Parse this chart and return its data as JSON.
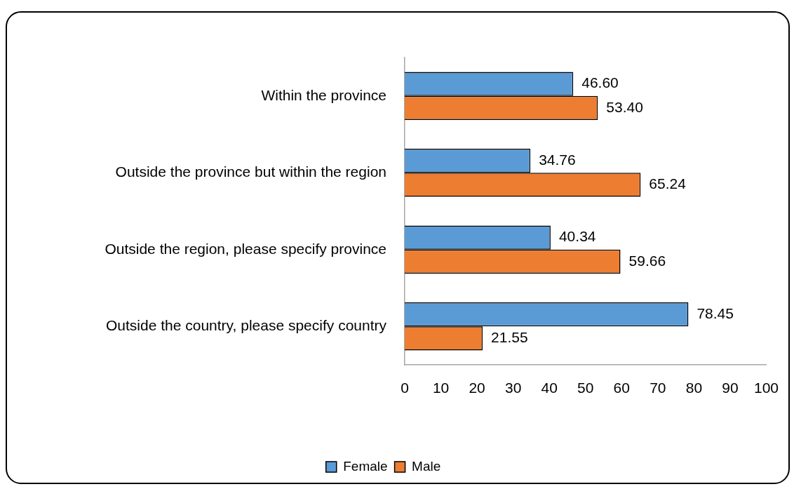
{
  "chart_data": {
    "type": "bar",
    "orientation": "horizontal",
    "categories": [
      "Within the province",
      "Outside the province but within the region",
      "Outside the region, please specify province",
      "Outside the country, please specify country"
    ],
    "series": [
      {
        "name": "Female",
        "color": "#5b9bd5",
        "values": [
          46.6,
          34.76,
          40.34,
          78.45
        ],
        "value_labels": [
          "46.60",
          "34.76",
          "40.34",
          "78.45"
        ]
      },
      {
        "name": "Male",
        "color": "#ed7d31",
        "values": [
          53.4,
          65.24,
          59.66,
          21.55
        ],
        "value_labels": [
          "53.40",
          "65.24",
          "59.66",
          "21.55"
        ]
      }
    ],
    "xlim": [
      0,
      100
    ],
    "xticks": [
      0,
      10,
      20,
      30,
      40,
      50,
      60,
      70,
      80,
      90,
      100
    ],
    "grid": false,
    "legend": "bottom"
  }
}
